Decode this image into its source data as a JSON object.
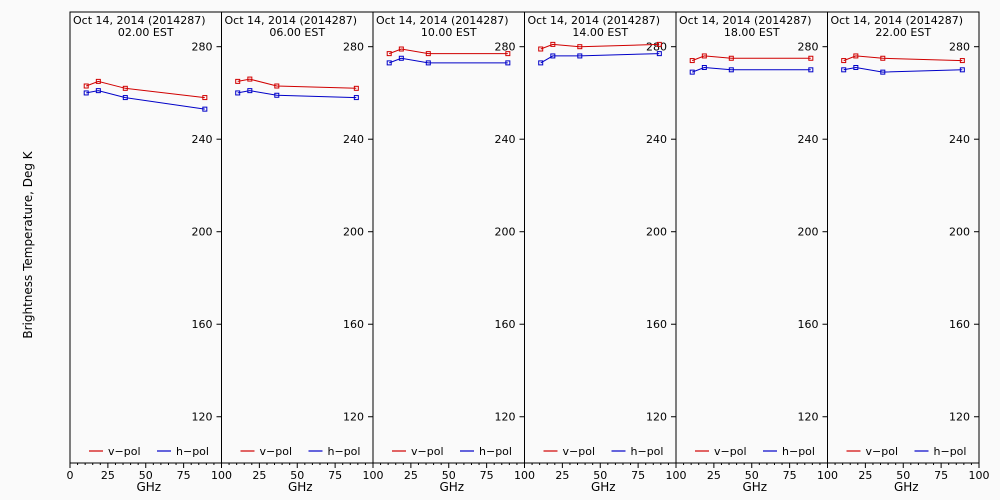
{
  "y_axis_label": "Brightness Temperature, Deg K",
  "x_axis_label": "GHz",
  "ylim": [
    100,
    295
  ],
  "xlim": [
    0,
    100
  ],
  "y_ticks": [
    120,
    160,
    200,
    240,
    280
  ],
  "x_ticks_first": [
    "0",
    "25",
    "50",
    "75",
    "100"
  ],
  "x_ticks_rest": [
    "25",
    "50",
    "75",
    "100"
  ],
  "legend": {
    "vpol": "v−pol",
    "hpol": "h−pol"
  },
  "colors": {
    "vpol": "#d00000",
    "hpol": "#0000c8",
    "frame": "#000000"
  },
  "chart_data": [
    {
      "type": "line",
      "title": "Oct 14, 2014 (2014287)",
      "subtitle": "02.00 EST",
      "x": [
        10.7,
        18.7,
        36.5,
        89.0
      ],
      "series": [
        {
          "name": "v−pol",
          "values": [
            263,
            265,
            262,
            258
          ]
        },
        {
          "name": "h−pol",
          "values": [
            260,
            261,
            258,
            253
          ]
        }
      ],
      "xlabel": "GHz",
      "ylabel": "Brightness Temperature, Deg K",
      "ylim": [
        100,
        295
      ]
    },
    {
      "type": "line",
      "title": "Oct 14, 2014 (2014287)",
      "subtitle": "06.00 EST",
      "x": [
        10.7,
        18.7,
        36.5,
        89.0
      ],
      "series": [
        {
          "name": "v−pol",
          "values": [
            265,
            266,
            263,
            262
          ]
        },
        {
          "name": "h−pol",
          "values": [
            260,
            261,
            259,
            258
          ]
        }
      ],
      "xlabel": "GHz",
      "ylabel": "",
      "ylim": [
        100,
        295
      ]
    },
    {
      "type": "line",
      "title": "Oct 14, 2014 (2014287)",
      "subtitle": "10.00 EST",
      "x": [
        10.7,
        18.7,
        36.5,
        89.0
      ],
      "series": [
        {
          "name": "v−pol",
          "values": [
            277,
            279,
            277,
            277
          ]
        },
        {
          "name": "h−pol",
          "values": [
            273,
            275,
            273,
            273
          ]
        }
      ],
      "xlabel": "GHz",
      "ylabel": "",
      "ylim": [
        100,
        295
      ]
    },
    {
      "type": "line",
      "title": "Oct 14, 2014 (2014287)",
      "subtitle": "14.00 EST",
      "x": [
        10.7,
        18.7,
        36.5,
        89.0
      ],
      "series": [
        {
          "name": "v−pol",
          "values": [
            279,
            281,
            280,
            281
          ]
        },
        {
          "name": "h−pol",
          "values": [
            273,
            276,
            276,
            277
          ]
        }
      ],
      "xlabel": "GHz",
      "ylabel": "",
      "ylim": [
        100,
        295
      ]
    },
    {
      "type": "line",
      "title": "Oct 14, 2014 (2014287)",
      "subtitle": "18.00 EST",
      "x": [
        10.7,
        18.7,
        36.5,
        89.0
      ],
      "series": [
        {
          "name": "v−pol",
          "values": [
            274,
            276,
            275,
            275
          ]
        },
        {
          "name": "h−pol",
          "values": [
            269,
            271,
            270,
            270
          ]
        }
      ],
      "xlabel": "GHz",
      "ylabel": "",
      "ylim": [
        100,
        295
      ]
    },
    {
      "type": "line",
      "title": "Oct 14, 2014 (2014287)",
      "subtitle": "22.00 EST",
      "x": [
        10.7,
        18.7,
        36.5,
        89.0
      ],
      "series": [
        {
          "name": "v−pol",
          "values": [
            274,
            276,
            275,
            274
          ]
        },
        {
          "name": "h−pol",
          "values": [
            270,
            271,
            269,
            270
          ]
        }
      ],
      "xlabel": "GHz",
      "ylabel": "",
      "ylim": [
        100,
        295
      ]
    }
  ]
}
